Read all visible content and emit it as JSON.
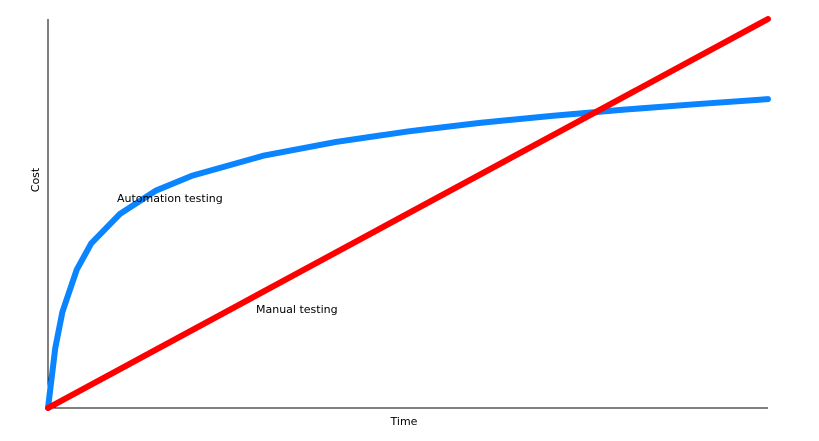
{
  "chart_data": {
    "type": "line",
    "xlabel": "Time",
    "ylabel": "Cost",
    "xlim": [
      0,
      100
    ],
    "ylim": [
      0,
      100
    ],
    "grid": false,
    "series": [
      {
        "name": "Automation testing",
        "color": "#0a84ff",
        "x": [
          0,
          1,
          2,
          4,
          6,
          10,
          15,
          20,
          30,
          40,
          50,
          60,
          70,
          80,
          90,
          100
        ],
        "y": [
          0,
          15.3,
          24.7,
          35.6,
          42.3,
          49.9,
          55.9,
          59.7,
          64.9,
          68.4,
          71.1,
          73.3,
          75.1,
          76.7,
          78.1,
          79.4
        ]
      },
      {
        "name": "Manual testing",
        "color": "#ff0000",
        "x": [
          0,
          100
        ],
        "y": [
          0,
          100
        ]
      }
    ]
  }
}
